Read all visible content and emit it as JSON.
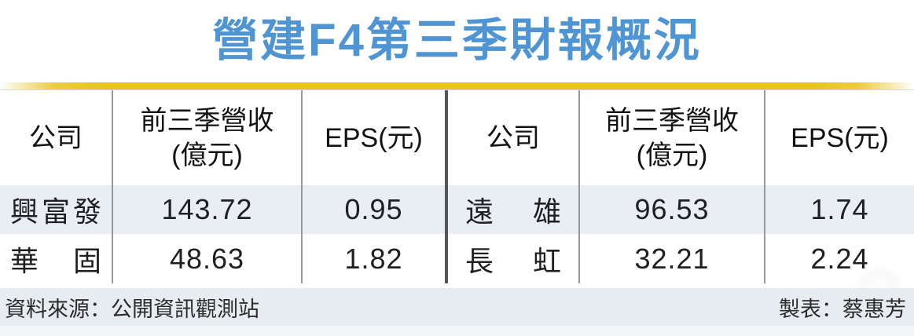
{
  "title": "營建F4第三季財報概況",
  "table": {
    "header": {
      "company": "公司",
      "revenue_line1": "前三季營收",
      "revenue_line2": "(億元)",
      "eps": "EPS(元)"
    },
    "left_rows": [
      {
        "company": "興富發",
        "revenue": "143.72",
        "eps": "0.95"
      },
      {
        "company": "華固",
        "revenue": "48.63",
        "eps": "1.82"
      }
    ],
    "right_rows": [
      {
        "company": "遠雄",
        "revenue": "96.53",
        "eps": "1.74"
      },
      {
        "company": "長虹",
        "revenue": "32.21",
        "eps": "2.24"
      }
    ]
  },
  "footer": {
    "source": "資料來源：公開資訊觀測站",
    "credit": "製表：蔡惠芳"
  },
  "colors": {
    "title_blue": "#4f95d3",
    "gold_line": "#e7c31e",
    "row_stripe": "#e9eef4",
    "footer_bg": "#e7ecf1",
    "column_rule": "#98989c",
    "center_rule": "#55565a"
  },
  "chart_data": {
    "type": "table",
    "title": "營建F4第三季財報概況",
    "columns": [
      "公司",
      "前三季營收(億元)",
      "EPS(元)"
    ],
    "rows": [
      [
        "興富發",
        143.72,
        0.95
      ],
      [
        "華固",
        48.63,
        1.82
      ],
      [
        "遠雄",
        96.53,
        1.74
      ],
      [
        "長虹",
        32.21,
        2.24
      ]
    ],
    "source": "資料來源：公開資訊觀測站",
    "credit": "製表：蔡惠芳",
    "layout": "two side-by-side halves sharing identical column headers; first data row striped light blue-gray; gold rule under blue title"
  }
}
